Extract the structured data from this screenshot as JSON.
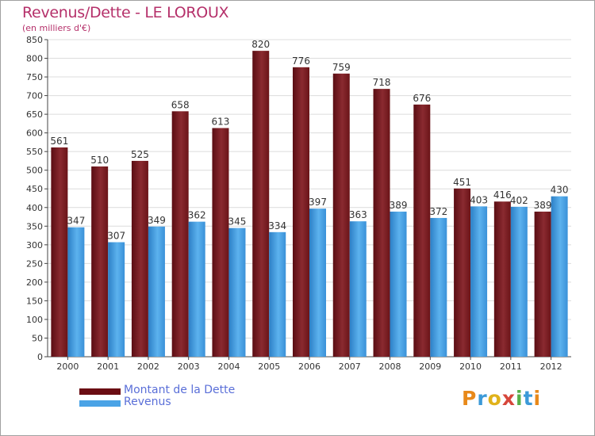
{
  "title": "Revenus/Dette - LE LOROUX",
  "subtitle": "(en milliers d'€)",
  "colors": {
    "title": "#b5306a",
    "debt": "#7b1c24",
    "revenue": "#4aa3e6",
    "legend_text": "#5a6fd8"
  },
  "legend": [
    {
      "label": "Montant de la Dette",
      "color": "#6b0d13"
    },
    {
      "label": "Revenus",
      "color": "#4aa3e6"
    }
  ],
  "logo": {
    "text": "Proxiti",
    "letters": [
      "P",
      "r",
      "o",
      "x",
      "i",
      "t",
      "i"
    ]
  },
  "chart_data": {
    "type": "bar",
    "title": "Revenus/Dette - LE LOROUX",
    "subtitle": "(en milliers d'€)",
    "categories": [
      "2000",
      "2001",
      "2002",
      "2003",
      "2004",
      "2005",
      "2006",
      "2007",
      "2008",
      "2009",
      "2010",
      "2011",
      "2012"
    ],
    "series": [
      {
        "name": "Montant de la Dette",
        "values": [
          561,
          510,
          525,
          658,
          613,
          820,
          776,
          759,
          718,
          676,
          451,
          416,
          389
        ]
      },
      {
        "name": "Revenus",
        "values": [
          347,
          307,
          349,
          362,
          345,
          334,
          397,
          363,
          389,
          372,
          403,
          402,
          430
        ]
      }
    ],
    "ylim": [
      0,
      850
    ],
    "yticks": [
      0,
      50,
      100,
      150,
      200,
      250,
      300,
      350,
      400,
      450,
      500,
      550,
      600,
      650,
      700,
      750,
      800,
      850
    ],
    "grid": true,
    "legend_position": "bottom-left"
  }
}
